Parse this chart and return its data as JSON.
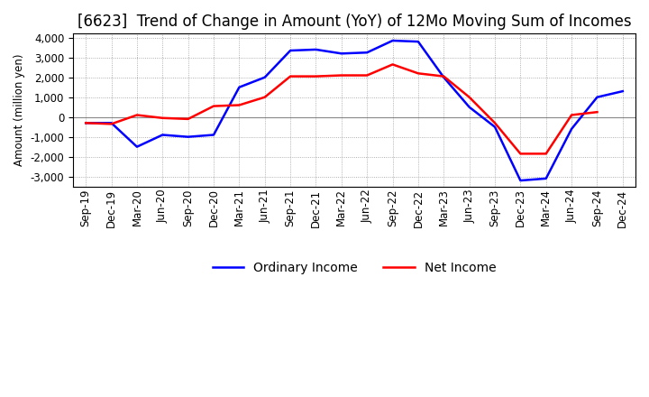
{
  "title": "[6623]  Trend of Change in Amount (YoY) of 12Mo Moving Sum of Incomes",
  "ylabel": "Amount (million yen)",
  "x_labels": [
    "Sep-19",
    "Dec-19",
    "Mar-20",
    "Jun-20",
    "Sep-20",
    "Dec-20",
    "Mar-21",
    "Jun-21",
    "Sep-21",
    "Dec-21",
    "Mar-22",
    "Jun-22",
    "Sep-22",
    "Dec-22",
    "Mar-23",
    "Jun-23",
    "Sep-23",
    "Dec-23",
    "Mar-24",
    "Jun-24",
    "Sep-24",
    "Dec-24"
  ],
  "ordinary_income": [
    -300,
    -300,
    -1500,
    -900,
    -1000,
    -900,
    1500,
    2000,
    3350,
    3400,
    3200,
    3250,
    3850,
    3800,
    2000,
    500,
    -500,
    -3200,
    -3100,
    -600,
    1000,
    1300
  ],
  "net_income": [
    -300,
    -350,
    100,
    -50,
    -100,
    550,
    600,
    1000,
    2050,
    2050,
    2100,
    2100,
    2650,
    2200,
    2050,
    1000,
    -300,
    -1850,
    -1850,
    100,
    250,
    null
  ],
  "ordinary_color": "#0000ff",
  "net_color": "#ff0000",
  "ylim": [
    -3500,
    4200
  ],
  "yticks": [
    -3000,
    -2000,
    -1000,
    0,
    1000,
    2000,
    3000,
    4000
  ],
  "background_color": "#ffffff",
  "grid_color": "#999999",
  "title_fontsize": 12,
  "legend_fontsize": 10,
  "axis_fontsize": 8.5
}
